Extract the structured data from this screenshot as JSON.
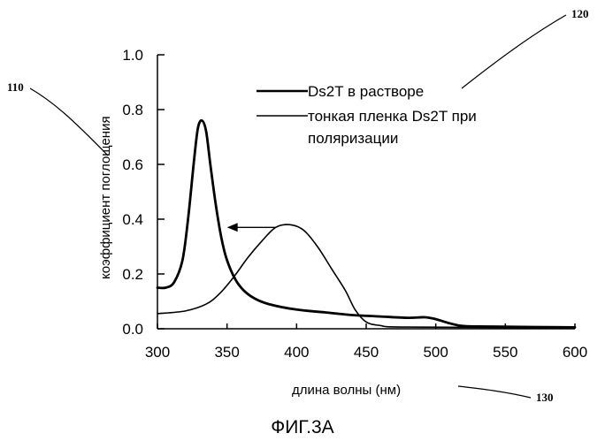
{
  "chart_data": {
    "type": "line",
    "title": "",
    "xlabel": "длина волны (нм)",
    "ylabel": "коэффициент поглощения",
    "xlim": [
      300,
      600
    ],
    "ylim": [
      0,
      1.0
    ],
    "x_ticks": [
      300,
      350,
      400,
      450,
      500,
      550,
      600
    ],
    "y_ticks": [
      0.0,
      0.2,
      0.4,
      0.6,
      0.8,
      1.0
    ],
    "y_tick_labels": [
      "0.0",
      "0.2",
      "0.4",
      "0.6",
      "0.8",
      "1.0"
    ],
    "legend_placement": "top-right",
    "grid": false,
    "series": [
      {
        "name": "Ds2T в растворе",
        "line_width": "thick",
        "points": [
          [
            300,
            0.15
          ],
          [
            306,
            0.15
          ],
          [
            312,
            0.17
          ],
          [
            318,
            0.25
          ],
          [
            322,
            0.4
          ],
          [
            326,
            0.6
          ],
          [
            329,
            0.73
          ],
          [
            332,
            0.76
          ],
          [
            335,
            0.72
          ],
          [
            338,
            0.6
          ],
          [
            342,
            0.45
          ],
          [
            346,
            0.33
          ],
          [
            350,
            0.25
          ],
          [
            356,
            0.18
          ],
          [
            362,
            0.14
          ],
          [
            370,
            0.11
          ],
          [
            380,
            0.09
          ],
          [
            400,
            0.07
          ],
          [
            420,
            0.06
          ],
          [
            440,
            0.05
          ],
          [
            460,
            0.045
          ],
          [
            480,
            0.04
          ],
          [
            492,
            0.042
          ],
          [
            500,
            0.035
          ],
          [
            510,
            0.02
          ],
          [
            520,
            0.01
          ],
          [
            540,
            0.008
          ],
          [
            600,
            0.005
          ]
        ]
      },
      {
        "name": "тонкая пленка Ds2T при поляризации",
        "line_width": "thin",
        "points": [
          [
            300,
            0.055
          ],
          [
            320,
            0.065
          ],
          [
            335,
            0.09
          ],
          [
            345,
            0.13
          ],
          [
            355,
            0.19
          ],
          [
            365,
            0.26
          ],
          [
            375,
            0.32
          ],
          [
            385,
            0.37
          ],
          [
            395,
            0.38
          ],
          [
            405,
            0.36
          ],
          [
            415,
            0.3
          ],
          [
            425,
            0.22
          ],
          [
            435,
            0.14
          ],
          [
            442,
            0.07
          ],
          [
            450,
            0.025
          ],
          [
            460,
            0.012
          ],
          [
            480,
            0.006
          ],
          [
            600,
            0.004
          ]
        ]
      }
    ],
    "annotations": [
      {
        "type": "arrow",
        "from": [
          385,
          0.37
        ],
        "to": [
          350,
          0.37
        ],
        "direction": "left"
      }
    ]
  },
  "reference_labels": {
    "ylabel_ref": "110",
    "legend_ref": "120",
    "xlabel_ref": "130"
  },
  "caption": "ФИГ.3А"
}
